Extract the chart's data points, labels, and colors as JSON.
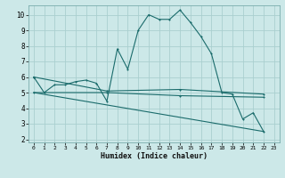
{
  "xlabel": "Humidex (Indice chaleur)",
  "background_color": "#cce8e8",
  "grid_color": "#aacfcf",
  "line_color": "#1a6b6b",
  "xlim": [
    -0.5,
    23.5
  ],
  "ylim": [
    1.8,
    10.6
  ],
  "yticks": [
    2,
    3,
    4,
    5,
    6,
    7,
    8,
    9,
    10
  ],
  "xticks": [
    0,
    1,
    2,
    3,
    4,
    5,
    6,
    7,
    8,
    9,
    10,
    11,
    12,
    13,
    14,
    15,
    16,
    17,
    18,
    19,
    20,
    21,
    22,
    23
  ],
  "series1": [
    [
      0,
      6.0
    ],
    [
      1,
      5.0
    ],
    [
      2,
      5.5
    ],
    [
      3,
      5.5
    ],
    [
      4,
      5.7
    ],
    [
      5,
      5.8
    ],
    [
      6,
      5.6
    ],
    [
      7,
      4.45
    ],
    [
      8,
      7.8
    ],
    [
      9,
      6.5
    ],
    [
      10,
      9.0
    ],
    [
      11,
      10.0
    ],
    [
      12,
      9.7
    ],
    [
      13,
      9.7
    ],
    [
      14,
      10.3
    ],
    [
      15,
      9.5
    ],
    [
      16,
      8.6
    ],
    [
      17,
      7.5
    ],
    [
      18,
      5.0
    ],
    [
      19,
      4.9
    ],
    [
      20,
      3.3
    ],
    [
      21,
      3.7
    ],
    [
      22,
      2.5
    ]
  ],
  "series2": [
    [
      0,
      6.0
    ],
    [
      7,
      5.1
    ],
    [
      14,
      5.2
    ],
    [
      22,
      4.9
    ]
  ],
  "series3": [
    [
      0,
      5.0
    ],
    [
      7,
      5.0
    ],
    [
      14,
      4.8
    ],
    [
      22,
      4.7
    ]
  ],
  "series4": [
    [
      0,
      5.0
    ],
    [
      22,
      2.5
    ]
  ]
}
